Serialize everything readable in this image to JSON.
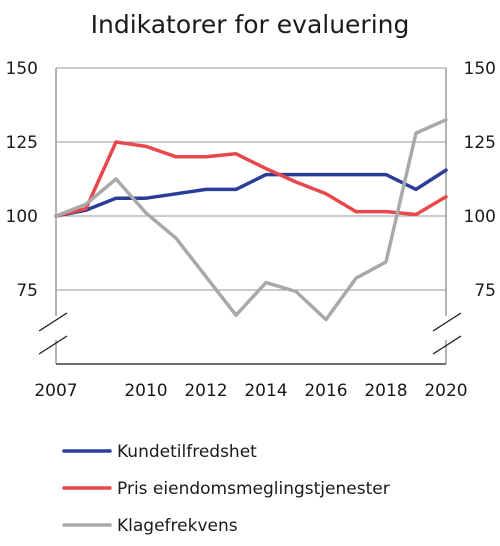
{
  "chart_data": {
    "type": "line",
    "title": "Indikatorer for evaluering",
    "xlabel": "",
    "ylabel": "",
    "x": [
      2007,
      2008,
      2009,
      2010,
      2011,
      2012,
      2013,
      2014,
      2015,
      2016,
      2017,
      2018,
      2019,
      2020
    ],
    "x_tick_labels": [
      "2007",
      "2010",
      "2012",
      "2014",
      "2016",
      "2018",
      "2020"
    ],
    "y_tick_labels": [
      "150",
      "125",
      "100",
      "75"
    ],
    "ylim": [
      50,
      150
    ],
    "axis_break": "below 75",
    "grid": true,
    "legend_position": "bottom",
    "series": [
      {
        "name": "Kundetilfredshet",
        "color": "#2a3e99",
        "values": [
          100,
          102,
          106,
          106,
          107.5,
          109,
          109,
          114,
          114,
          114,
          114,
          114,
          109,
          115.5
        ]
      },
      {
        "name": "Pris eiendomsmeglingstjenester",
        "color": "#e8474c",
        "values": [
          100,
          102.5,
          125,
          123.5,
          120,
          120,
          121,
          116,
          111.5,
          107.5,
          101.5,
          101.5,
          100.5,
          106.5
        ]
      },
      {
        "name": "Klagefrekvens",
        "color": "#a9a9a9",
        "values": [
          100,
          104,
          112.5,
          101,
          92.5,
          79.5,
          66.5,
          77.5,
          74.5,
          65,
          79,
          84.5,
          128,
          132.5
        ]
      }
    ]
  }
}
